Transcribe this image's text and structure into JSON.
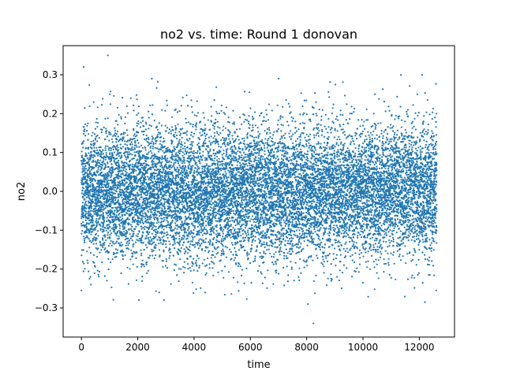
{
  "chart_data": {
    "type": "scatter",
    "title": "no2 vs. time: Round 1 donovan",
    "xlabel": "time",
    "ylabel": "no2",
    "xlim": [
      -650,
      13250
    ],
    "ylim": [
      -0.375,
      0.375
    ],
    "xticks": [
      0,
      2000,
      4000,
      6000,
      8000,
      10000,
      12000
    ],
    "yticks": [
      -0.3,
      -0.2,
      -0.1,
      0.0,
      0.1,
      0.2,
      0.3
    ],
    "grid": false,
    "legend": "none",
    "marker_color": "#1f77b4",
    "series": [
      {
        "x_range": [
          0,
          12620
        ],
        "n_points": 12620,
        "center": 0.0,
        "spread_std": 0.085,
        "y_min": -0.34,
        "y_max": 0.35,
        "notable_points": [
          {
            "x": 940,
            "y": 0.35
          },
          {
            "x": 80,
            "y": 0.32
          },
          {
            "x": 12100,
            "y": 0.3
          },
          {
            "x": 7000,
            "y": 0.29
          },
          {
            "x": 2500,
            "y": 0.29
          },
          {
            "x": 8240,
            "y": -0.34
          },
          {
            "x": 8040,
            "y": -0.29
          },
          {
            "x": 2040,
            "y": -0.28
          },
          {
            "x": 12200,
            "y": -0.285
          },
          {
            "x": 0,
            "y": -0.255
          },
          {
            "x": 12600,
            "y": -0.255
          }
        ]
      }
    ]
  }
}
